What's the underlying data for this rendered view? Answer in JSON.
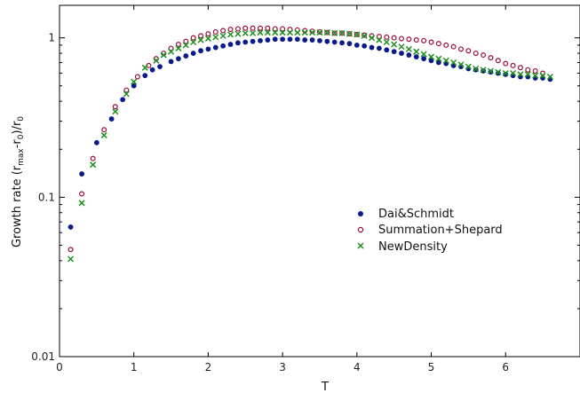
{
  "chart_data": {
    "type": "scatter",
    "title": "",
    "xlabel": "T",
    "ylabel_main": "Growth rate (r",
    "ylabel_sub1": "max",
    "ylabel_mid": "-r",
    "ylabel_sub2": "0",
    "ylabel_end": ")/r",
    "ylabel_sub3": "0",
    "xlim": [
      0,
      7
    ],
    "ylim": [
      0.01,
      1.6
    ],
    "yscale": "log",
    "x_ticks": [
      0,
      1,
      2,
      3,
      4,
      5,
      6
    ],
    "y_ticks": [
      {
        "value": 0.01,
        "label": "0.01"
      },
      {
        "value": 0.1,
        "label": "0.1"
      },
      {
        "value": 1,
        "label": "1"
      }
    ],
    "grid": false,
    "legend_position": "center-right",
    "series": [
      {
        "name": "Dai&Schmidt",
        "marker": "dot",
        "color": "#0a1a8c",
        "x": [
          0.15,
          0.3,
          0.5,
          0.7,
          0.85,
          1.0,
          1.15,
          1.25,
          1.35,
          1.5,
          1.6,
          1.7,
          1.8,
          1.9,
          2.0,
          2.1,
          2.2,
          2.3,
          2.4,
          2.5,
          2.6,
          2.7,
          2.8,
          2.9,
          3.0,
          3.1,
          3.2,
          3.3,
          3.4,
          3.5,
          3.6,
          3.7,
          3.8,
          3.9,
          4.0,
          4.1,
          4.2,
          4.3,
          4.4,
          4.5,
          4.6,
          4.7,
          4.8,
          4.9,
          5.0,
          5.1,
          5.2,
          5.3,
          5.4,
          5.5,
          5.6,
          5.7,
          5.8,
          5.9,
          6.0,
          6.1,
          6.2,
          6.3,
          6.4,
          6.5,
          6.6
        ],
        "y": [
          0.065,
          0.14,
          0.22,
          0.31,
          0.41,
          0.5,
          0.58,
          0.63,
          0.66,
          0.71,
          0.74,
          0.77,
          0.8,
          0.83,
          0.85,
          0.87,
          0.89,
          0.91,
          0.93,
          0.94,
          0.95,
          0.96,
          0.97,
          0.98,
          0.98,
          0.98,
          0.98,
          0.97,
          0.97,
          0.96,
          0.95,
          0.94,
          0.93,
          0.92,
          0.9,
          0.89,
          0.87,
          0.86,
          0.84,
          0.82,
          0.8,
          0.78,
          0.76,
          0.74,
          0.72,
          0.7,
          0.69,
          0.67,
          0.66,
          0.64,
          0.63,
          0.62,
          0.61,
          0.6,
          0.59,
          0.58,
          0.57,
          0.57,
          0.56,
          0.56,
          0.55
        ]
      },
      {
        "name": "Summation+Shepard",
        "marker": "circle",
        "color": "#9c0a3c",
        "x": [
          0.15,
          0.3,
          0.45,
          0.6,
          0.75,
          0.9,
          1.05,
          1.2,
          1.3,
          1.4,
          1.5,
          1.6,
          1.7,
          1.8,
          1.9,
          2.0,
          2.1,
          2.2,
          2.3,
          2.4,
          2.5,
          2.6,
          2.7,
          2.8,
          2.9,
          3.0,
          3.1,
          3.2,
          3.3,
          3.4,
          3.5,
          3.6,
          3.7,
          3.8,
          3.9,
          4.0,
          4.1,
          4.2,
          4.3,
          4.4,
          4.5,
          4.6,
          4.7,
          4.8,
          4.9,
          5.0,
          5.1,
          5.2,
          5.3,
          5.4,
          5.5,
          5.6,
          5.7,
          5.8,
          5.9,
          6.0,
          6.1,
          6.2,
          6.3,
          6.4,
          6.5
        ],
        "y": [
          0.047,
          0.105,
          0.175,
          0.265,
          0.37,
          0.47,
          0.57,
          0.67,
          0.74,
          0.8,
          0.86,
          0.91,
          0.95,
          1.0,
          1.03,
          1.06,
          1.09,
          1.11,
          1.13,
          1.14,
          1.15,
          1.15,
          1.15,
          1.15,
          1.14,
          1.14,
          1.13,
          1.12,
          1.11,
          1.1,
          1.09,
          1.08,
          1.07,
          1.07,
          1.06,
          1.05,
          1.04,
          1.03,
          1.02,
          1.01,
          1.0,
          0.99,
          0.98,
          0.97,
          0.96,
          0.94,
          0.92,
          0.9,
          0.88,
          0.85,
          0.83,
          0.8,
          0.78,
          0.75,
          0.72,
          0.69,
          0.67,
          0.65,
          0.63,
          0.62,
          0.6
        ]
      },
      {
        "name": "NewDensity",
        "marker": "x",
        "color": "#1f8f1f",
        "x": [
          0.15,
          0.3,
          0.45,
          0.6,
          0.75,
          0.9,
          1.0,
          1.15,
          1.3,
          1.4,
          1.5,
          1.6,
          1.7,
          1.8,
          1.9,
          2.0,
          2.1,
          2.2,
          2.3,
          2.4,
          2.5,
          2.6,
          2.7,
          2.8,
          2.9,
          3.0,
          3.1,
          3.2,
          3.3,
          3.4,
          3.5,
          3.6,
          3.7,
          3.8,
          3.9,
          4.0,
          4.1,
          4.2,
          4.3,
          4.4,
          4.5,
          4.6,
          4.7,
          4.8,
          4.9,
          5.0,
          5.1,
          5.2,
          5.3,
          5.4,
          5.5,
          5.6,
          5.7,
          5.8,
          5.9,
          6.0,
          6.1,
          6.2,
          6.3,
          6.4,
          6.5,
          6.6
        ],
        "y": [
          0.041,
          0.092,
          0.16,
          0.245,
          0.345,
          0.445,
          0.53,
          0.65,
          0.72,
          0.78,
          0.82,
          0.86,
          0.9,
          0.94,
          0.97,
          0.99,
          1.01,
          1.03,
          1.05,
          1.06,
          1.07,
          1.07,
          1.08,
          1.08,
          1.08,
          1.08,
          1.08,
          1.08,
          1.08,
          1.08,
          1.08,
          1.08,
          1.07,
          1.07,
          1.06,
          1.05,
          1.03,
          1.0,
          0.97,
          0.94,
          0.91,
          0.88,
          0.85,
          0.82,
          0.79,
          0.76,
          0.74,
          0.72,
          0.7,
          0.68,
          0.66,
          0.64,
          0.63,
          0.62,
          0.61,
          0.6,
          0.6,
          0.59,
          0.59,
          0.58,
          0.58,
          0.57
        ]
      }
    ]
  }
}
